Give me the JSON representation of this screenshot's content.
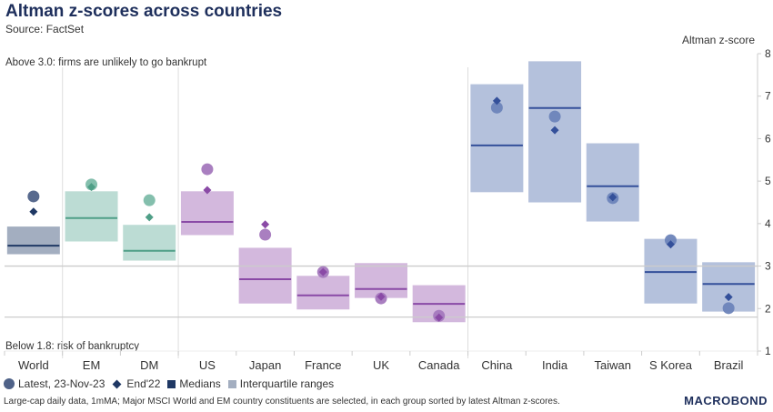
{
  "title": "Altman z-scores across countries",
  "source": "Source: FactSet",
  "chart_data": {
    "type": "box",
    "ylabel": "Altman z-score",
    "ylim": [
      1,
      8
    ],
    "yticks": [
      1,
      2,
      3,
      4,
      5,
      6,
      7,
      8
    ],
    "grid": false,
    "reference_lines": [
      {
        "value": 3.0,
        "label": "Above 3.0: firms are unlikely to go bankrupt"
      },
      {
        "value": 1.8,
        "label": "Below 1.8: risk of bankruptcy"
      }
    ],
    "categories": [
      "World",
      "EM",
      "DM",
      "US",
      "Japan",
      "France",
      "UK",
      "Canada",
      "China",
      "India",
      "Taiwan",
      "S Korea",
      "Brazil"
    ],
    "groups": [
      "world",
      "dmem",
      "dmem",
      "dm",
      "dm",
      "dm",
      "dm",
      "dm",
      "em",
      "em",
      "em",
      "em",
      "em"
    ],
    "q1": [
      3.29,
      3.59,
      3.14,
      3.74,
      2.13,
      1.99,
      2.26,
      1.69,
      4.75,
      4.51,
      4.06,
      2.13,
      1.94
    ],
    "q3": [
      3.92,
      4.75,
      3.96,
      4.75,
      3.42,
      2.76,
      3.06,
      2.54,
      7.27,
      7.81,
      5.88,
      3.63,
      3.08
    ],
    "median": [
      3.48,
      4.13,
      3.36,
      4.04,
      2.69,
      2.31,
      2.46,
      2.11,
      5.84,
      6.72,
      4.88,
      2.86,
      2.58
    ],
    "latest": [
      4.64,
      4.92,
      4.55,
      5.28,
      3.74,
      2.86,
      2.24,
      1.83,
      6.73,
      6.52,
      4.6,
      3.61,
      2.01
    ],
    "end22": [
      4.28,
      4.86,
      4.15,
      4.79,
      3.98,
      2.86,
      2.28,
      1.79,
      6.89,
      6.2,
      4.62,
      3.51,
      2.27
    ],
    "legend": {
      "latest": "Latest, 23-Nov-23",
      "end22": "End'22",
      "medians": "Medians",
      "iqr": "Interquartile ranges"
    }
  },
  "colors": {
    "world": {
      "box": "#a3aec0",
      "line": "#1f3864",
      "dot": "#4f6288",
      "diamond": "#1f3864"
    },
    "dmem": {
      "box": "#bcdcd4",
      "line": "#4f9f87",
      "dot": "#7dbca9",
      "diamond": "#4f9f87"
    },
    "dm": {
      "box": "#d3b8dd",
      "line": "#8a4aa6",
      "dot": "#a478bd",
      "diamond": "#8a4aa6"
    },
    "em": {
      "box": "#b4c1dc",
      "line": "#34509a",
      "dot": "#6d84b9",
      "diamond": "#34509a"
    }
  },
  "footnote": "Large-cap daily data, 1mMA; Major MSCI World and EM country constituents are selected, in each group sorted by latest Altman z-scores.",
  "logo": "MACROBOND"
}
